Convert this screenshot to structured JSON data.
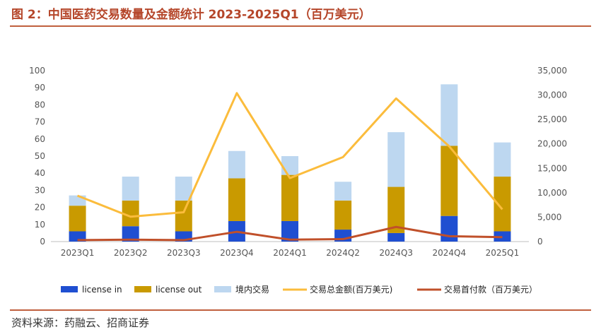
{
  "header": {
    "title": "图 2：中国医药交易数量及金额统计 2023-2025Q1（百万美元）"
  },
  "footer": {
    "source": "资料来源：药融云、招商证券"
  },
  "colors": {
    "license_in": "#1f4fd1",
    "license_out": "#c99a00",
    "domestic": "#bdd7f0",
    "total_amount": "#fbbc3c",
    "upfront": "#c0502a",
    "accent": "#c0603e"
  },
  "chart_data": {
    "type": "bar",
    "stacked": true,
    "categories": [
      "2023Q1",
      "2023Q2",
      "2023Q3",
      "2023Q4",
      "2024Q1",
      "2024Q2",
      "2024Q3",
      "2024Q4",
      "2025Q1"
    ],
    "series": [
      {
        "name": "license in",
        "type": "bar",
        "axis": "left",
        "values": [
          6,
          9,
          6,
          12,
          12,
          7,
          5,
          15,
          6
        ]
      },
      {
        "name": "license out",
        "type": "bar",
        "axis": "left",
        "values": [
          15,
          15,
          18,
          25,
          27,
          17,
          27,
          41,
          32
        ]
      },
      {
        "name": "境内交易",
        "type": "bar",
        "axis": "left",
        "values": [
          6,
          14,
          14,
          16,
          11,
          11,
          32,
          36,
          20
        ]
      },
      {
        "name": "交易总金额(百万美元)",
        "type": "line",
        "axis": "right",
        "values": [
          9400,
          5100,
          6000,
          30400,
          13000,
          17300,
          29300,
          19500,
          6600
        ]
      },
      {
        "name": "交易首付款（百万美元）",
        "type": "line",
        "axis": "right",
        "values": [
          300,
          400,
          300,
          2000,
          400,
          500,
          3000,
          1100,
          900
        ]
      }
    ],
    "ylim_left": [
      0,
      100
    ],
    "yticks_left": [
      "0",
      "10",
      "20",
      "30",
      "40",
      "50",
      "60",
      "70",
      "80",
      "90",
      "100"
    ],
    "ylim_right": [
      0,
      35000
    ],
    "yticks_right": [
      "0",
      "5,000",
      "10,000",
      "15,000",
      "20,000",
      "25,000",
      "30,000",
      "35,000"
    ],
    "grid": false,
    "legend_position": "bottom"
  }
}
